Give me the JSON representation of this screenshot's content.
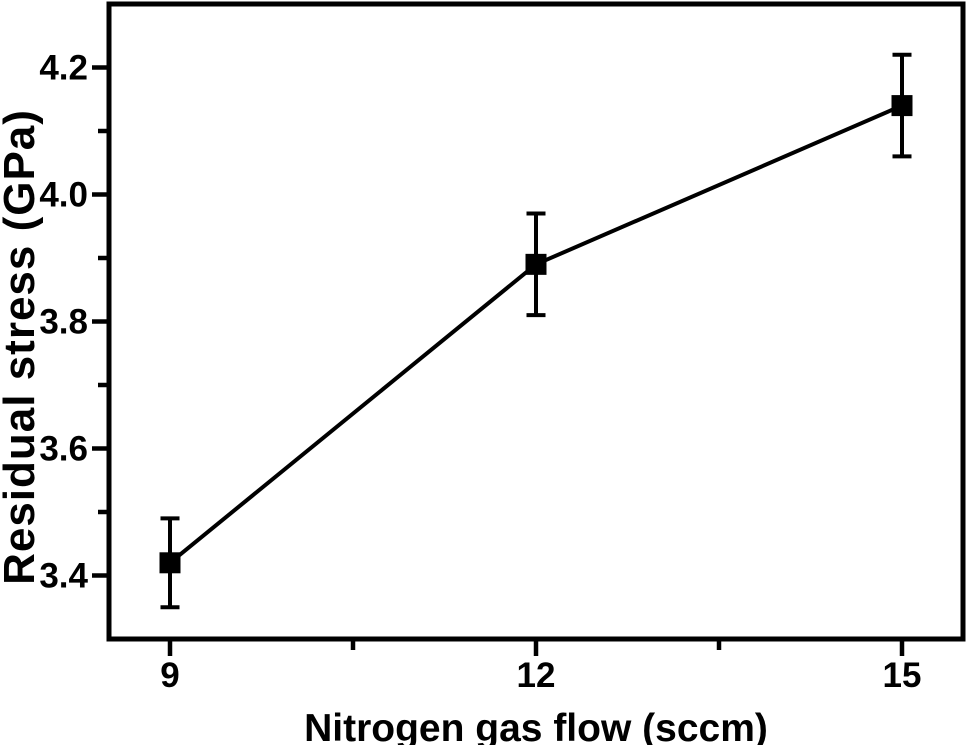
{
  "figure": {
    "background_color": "#ffffff",
    "foreground_color": "#000000"
  },
  "chart_data": {
    "type": "line",
    "title": "",
    "xlabel": "Nitrogen gas flow (sccm)",
    "ylabel": "Residual stress (GPa)",
    "x": [
      9,
      12,
      15
    ],
    "series": [
      {
        "name": "Residual stress",
        "values": [
          3.42,
          3.89,
          4.14
        ],
        "y_err": [
          0.07,
          0.08,
          0.08
        ]
      }
    ],
    "xlim": [
      8.5,
      15.5
    ],
    "ylim": [
      3.3,
      4.3
    ],
    "x_major_ticks": [
      9,
      12,
      15
    ],
    "x_minor_ticks": [
      10.5,
      13.5
    ],
    "y_major_ticks": [
      3.4,
      3.6,
      3.8,
      4.0,
      4.2
    ],
    "y_minor_ticks": [
      3.5,
      3.7,
      3.9,
      4.1
    ],
    "y_tick_decimals": 1,
    "x_tick_decimals": 0,
    "grid": false,
    "legend": "none",
    "box_frame": true,
    "marker": "filled-square",
    "line_color": "#000000",
    "marker_color": "#000000",
    "error_bar_color": "#000000"
  }
}
